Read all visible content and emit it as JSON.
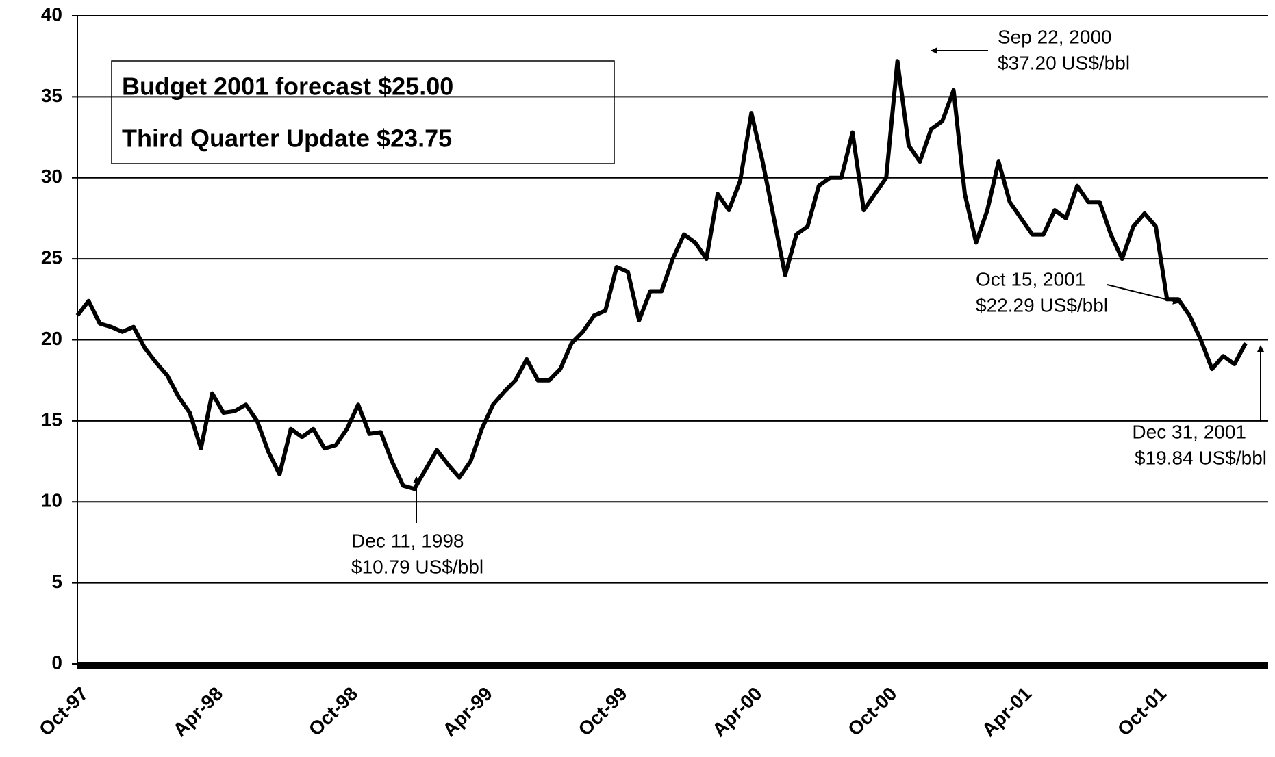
{
  "chart_data": {
    "type": "line",
    "color": "#000000",
    "grid": true,
    "ylim": [
      0,
      40
    ],
    "yticks": [
      0,
      5,
      10,
      15,
      20,
      25,
      30,
      35,
      40
    ],
    "xlim": [
      0,
      53
    ],
    "xticks": [
      {
        "value": 0,
        "label": "Oct-97"
      },
      {
        "value": 6,
        "label": "Apr-98"
      },
      {
        "value": 12,
        "label": "Oct-98"
      },
      {
        "value": 18,
        "label": "Apr-99"
      },
      {
        "value": 24,
        "label": "Oct-99"
      },
      {
        "value": 30,
        "label": "Apr-00"
      },
      {
        "value": 36,
        "label": "Oct-00"
      },
      {
        "value": 42,
        "label": "Apr-01"
      },
      {
        "value": 48,
        "label": "Oct-01"
      }
    ],
    "x": [
      0,
      0.5,
      1,
      1.5,
      2,
      2.5,
      3,
      3.5,
      4,
      4.5,
      5,
      5.5,
      6,
      6.5,
      7,
      7.5,
      8,
      8.5,
      9,
      9.5,
      10,
      10.5,
      11,
      11.5,
      12,
      12.5,
      13,
      13.5,
      14,
      14.5,
      15,
      15.5,
      16,
      16.5,
      17,
      17.5,
      18,
      18.5,
      19,
      19.5,
      20,
      20.5,
      21,
      21.5,
      22,
      22.5,
      23,
      23.5,
      24,
      24.5,
      25,
      25.5,
      26,
      26.5,
      27,
      27.5,
      28,
      28.5,
      29,
      29.5,
      30,
      30.5,
      31,
      31.5,
      32,
      32.5,
      33,
      33.5,
      34,
      34.5,
      35,
      35.5,
      36,
      36.5,
      37,
      37.5,
      38,
      38.5,
      39,
      39.5,
      40,
      40.5,
      41,
      41.5,
      42,
      42.5,
      43,
      43.5,
      44,
      44.5,
      45,
      45.5,
      46,
      46.5,
      47,
      47.5,
      48,
      48.5,
      49,
      49.5,
      50,
      50.5,
      51,
      51.5,
      52
    ],
    "values": [
      21.5,
      22.4,
      21,
      20.8,
      20.5,
      20.8,
      19.5,
      18.6,
      17.8,
      16.5,
      15.5,
      13.3,
      16.7,
      15.5,
      15.6,
      16,
      15,
      13.1,
      11.7,
      14.5,
      14,
      14.5,
      13.3,
      13.5,
      14.5,
      16,
      14.2,
      14.3,
      12.5,
      11,
      10.8,
      12,
      13.2,
      12.3,
      11.5,
      12.5,
      14.5,
      16,
      16.8,
      17.5,
      18.8,
      17.5,
      17.5,
      18.2,
      19.8,
      20.5,
      21.5,
      21.8,
      24.5,
      24.2,
      21.2,
      23,
      23,
      25,
      26.5,
      26,
      25,
      29,
      28,
      29.8,
      34,
      31,
      27.5,
      24,
      26.5,
      27,
      29.5,
      30,
      30,
      32.8,
      28,
      29,
      30,
      37.2,
      32,
      31,
      33,
      33.5,
      35.4,
      29,
      26,
      28,
      31,
      28.5,
      27.5,
      26.5,
      26.5,
      28,
      27.5,
      29.5,
      28.5,
      28.5,
      26.5,
      25,
      27,
      27.8,
      27,
      22.5,
      22.5,
      21.5,
      20,
      18.2,
      19,
      18.5,
      19.8
    ],
    "textbox": [
      "Budget 2001 forecast $25.00",
      "Third Quarter Update $23.75"
    ],
    "annotations": [
      [
        "Sep 22, 2000",
        "$37.20 US$/bbl"
      ],
      [
        "Oct 15, 2001",
        "$22.29 US$/bbl"
      ],
      [
        "Dec 31, 2001",
        "$19.84 US$/bbl"
      ],
      [
        "Dec 11, 1998",
        "$10.79 US$/bbl"
      ]
    ]
  }
}
